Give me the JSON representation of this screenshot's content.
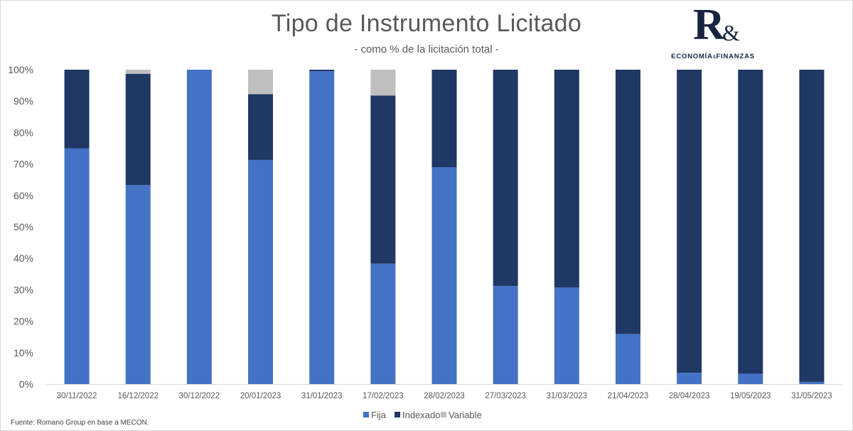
{
  "header": {
    "title": "Tipo de Instrumento Licitado",
    "subtitle": "- como % de la licitación total -"
  },
  "logo": {
    "letter": "R",
    "ampersand": "&",
    "text_left": "ECONOMÍA",
    "text_amp": "&",
    "text_right": "FINANZAS"
  },
  "source": "Fuente:  Romano Group en base a MECON.",
  "chart_data": {
    "type": "bar",
    "stacked": true,
    "categories": [
      "30/11/2022",
      "16/12/2022",
      "30/12/2022",
      "20/01/2023",
      "31/01/2023",
      "17/02/2023",
      "28/02/2023",
      "27/03/2023",
      "31/03/2023",
      "21/04/2023",
      "28/04/2023",
      "19/05/2023",
      "31/05/2023"
    ],
    "series": [
      {
        "name": "Fija",
        "color": "#4472c4",
        "values": [
          75,
          63.3,
          100,
          71.3,
          99.5,
          38.3,
          69,
          31.2,
          30.7,
          15.9,
          3.6,
          3.3,
          0.7
        ]
      },
      {
        "name": "Indexado",
        "color": "#1f3864",
        "values": [
          25,
          35.4,
          0,
          20.9,
          0.5,
          53.5,
          31,
          68.8,
          69.3,
          84.1,
          96.4,
          96.7,
          99.3
        ]
      },
      {
        "name": "Variable",
        "color": "#bfbfbf",
        "values": [
          0,
          1.3,
          0,
          7.8,
          0,
          8.2,
          0,
          0,
          0,
          0,
          0,
          0,
          0
        ]
      }
    ],
    "ylim": [
      0,
      100
    ],
    "yticks": [
      "0%",
      "10%",
      "20%",
      "30%",
      "40%",
      "50%",
      "60%",
      "70%",
      "80%",
      "90%",
      "100%"
    ],
    "grid": false,
    "legend_position": "bottom"
  }
}
